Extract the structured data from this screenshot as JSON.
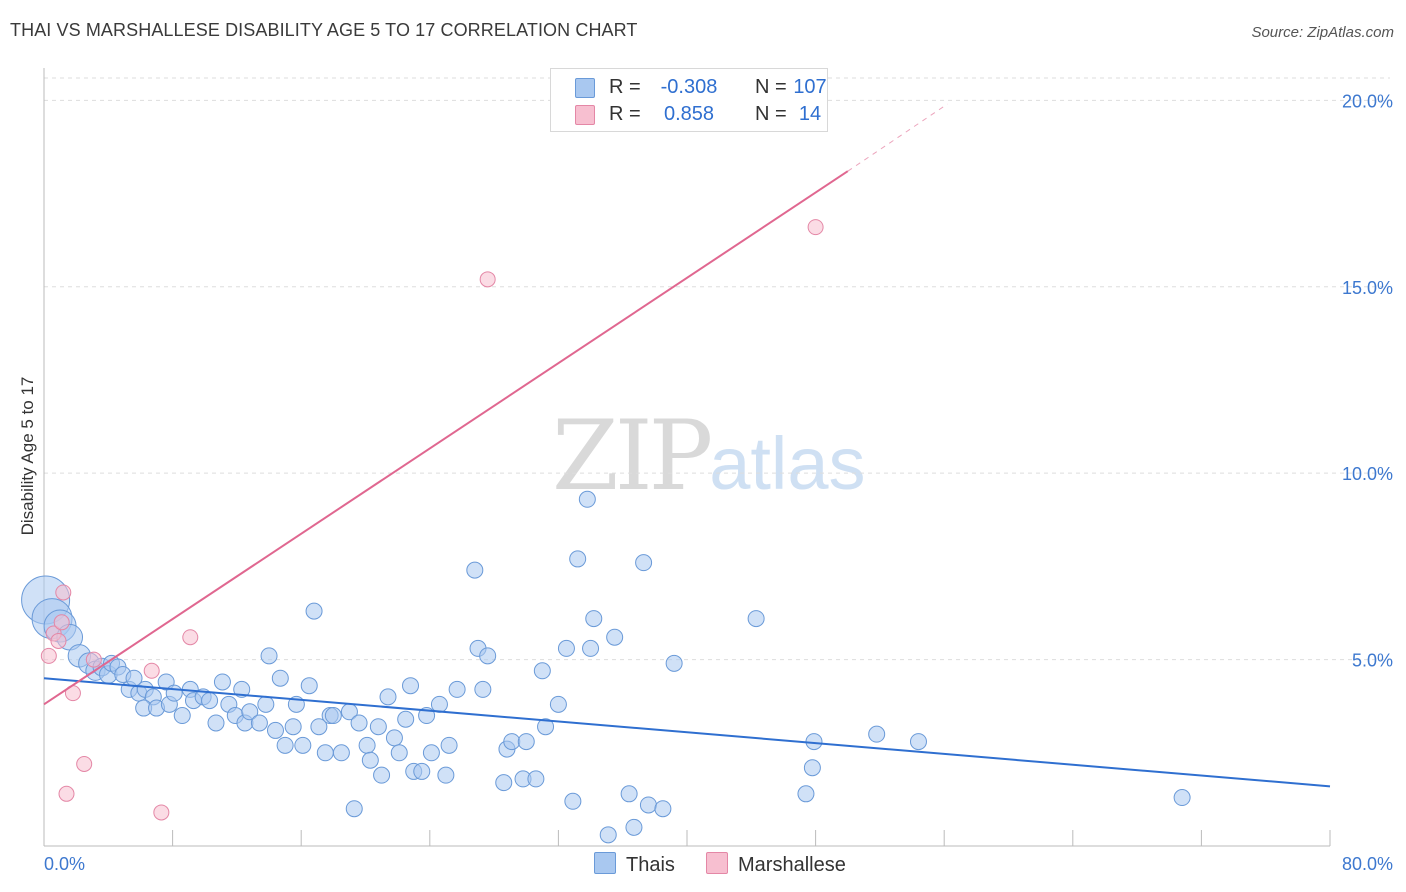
{
  "title": "THAI VS MARSHALLESE DISABILITY AGE 5 TO 17 CORRELATION CHART",
  "source": "Source: ZipAtlas.com",
  "watermark": {
    "zip": "ZIP",
    "atlas": "atlas"
  },
  "legend": {
    "rows": [
      {
        "r_label": "R =",
        "r_value": "-0.308",
        "n_label": "N =",
        "n_value": "107",
        "color": "#a9c8f0",
        "border": "#6a9ad8"
      },
      {
        "r_label": "R =",
        "r_value": "0.858",
        "n_label": "N =",
        "n_value": "14",
        "color": "#f7bfd0",
        "border": "#e487a6"
      }
    ]
  },
  "bottom_legend": [
    {
      "label": "Thais",
      "color": "#a9c8f0",
      "border": "#6a9ad8"
    },
    {
      "label": "Marshallese",
      "color": "#f7bfd0",
      "border": "#e487a6"
    }
  ],
  "chart_data": {
    "type": "scatter",
    "title": "THAI VS MARSHALLESE DISABILITY AGE 5 TO 17 CORRELATION CHART",
    "xlabel": "",
    "ylabel": "Disability Age 5 to 17",
    "xlim": [
      0,
      80
    ],
    "ylim": [
      0,
      20.6
    ],
    "x_tick_labels": [
      "0.0%",
      "80.0%"
    ],
    "y_ticks": [
      5,
      10,
      15,
      20
    ],
    "y_tick_labels": [
      "5.0%",
      "10.0%",
      "15.0%",
      "20.0%"
    ],
    "grid": "horizontal dashed",
    "legend_position": "top-center",
    "series": [
      {
        "name": "Thais",
        "color": "#6a9ad8",
        "fill": "#a9c8f0",
        "trend": {
          "x": [
            0,
            80
          ],
          "y": [
            4.5,
            1.6
          ],
          "color": "#2f6fd0"
        },
        "points": [
          {
            "x": 0.1,
            "y": 6.6,
            "s": 3
          },
          {
            "x": 0.5,
            "y": 6.1,
            "s": 2.5
          },
          {
            "x": 1.0,
            "y": 5.9,
            "s": 2
          },
          {
            "x": 1.6,
            "y": 5.6,
            "s": 1.6
          },
          {
            "x": 2.2,
            "y": 5.1,
            "s": 1.4
          },
          {
            "x": 2.8,
            "y": 4.9,
            "s": 1.3
          },
          {
            "x": 3.2,
            "y": 4.7,
            "s": 1.2
          },
          {
            "x": 3.6,
            "y": 4.8,
            "s": 1.1
          },
          {
            "x": 4.0,
            "y": 4.6,
            "s": 1.1
          },
          {
            "x": 4.2,
            "y": 4.9,
            "s": 1
          },
          {
            "x": 4.6,
            "y": 4.8,
            "s": 1
          },
          {
            "x": 4.9,
            "y": 4.6,
            "s": 1
          },
          {
            "x": 5.3,
            "y": 4.2,
            "s": 1
          },
          {
            "x": 5.6,
            "y": 4.5,
            "s": 1
          },
          {
            "x": 5.9,
            "y": 4.1,
            "s": 1
          },
          {
            "x": 6.3,
            "y": 4.2,
            "s": 1
          },
          {
            "x": 6.8,
            "y": 4.0,
            "s": 1
          },
          {
            "x": 6.2,
            "y": 3.7,
            "s": 1
          },
          {
            "x": 7.0,
            "y": 3.7,
            "s": 1
          },
          {
            "x": 7.6,
            "y": 4.4,
            "s": 1
          },
          {
            "x": 7.8,
            "y": 3.8,
            "s": 1
          },
          {
            "x": 8.1,
            "y": 4.1,
            "s": 1
          },
          {
            "x": 8.6,
            "y": 3.5,
            "s": 1
          },
          {
            "x": 9.1,
            "y": 4.2,
            "s": 1
          },
          {
            "x": 9.3,
            "y": 3.9,
            "s": 1
          },
          {
            "x": 9.9,
            "y": 4.0,
            "s": 1
          },
          {
            "x": 10.3,
            "y": 3.9,
            "s": 1
          },
          {
            "x": 10.7,
            "y": 3.3,
            "s": 1
          },
          {
            "x": 11.1,
            "y": 4.4,
            "s": 1
          },
          {
            "x": 11.5,
            "y": 3.8,
            "s": 1
          },
          {
            "x": 11.9,
            "y": 3.5,
            "s": 1
          },
          {
            "x": 12.3,
            "y": 4.2,
            "s": 1
          },
          {
            "x": 12.5,
            "y": 3.3,
            "s": 1
          },
          {
            "x": 12.8,
            "y": 3.6,
            "s": 1
          },
          {
            "x": 13.4,
            "y": 3.3,
            "s": 1
          },
          {
            "x": 13.8,
            "y": 3.8,
            "s": 1
          },
          {
            "x": 14.0,
            "y": 5.1,
            "s": 1
          },
          {
            "x": 14.4,
            "y": 3.1,
            "s": 1
          },
          {
            "x": 14.7,
            "y": 4.5,
            "s": 1
          },
          {
            "x": 15.0,
            "y": 2.7,
            "s": 1
          },
          {
            "x": 15.5,
            "y": 3.2,
            "s": 1
          },
          {
            "x": 15.7,
            "y": 3.8,
            "s": 1
          },
          {
            "x": 16.1,
            "y": 2.7,
            "s": 1
          },
          {
            "x": 16.5,
            "y": 4.3,
            "s": 1
          },
          {
            "x": 16.8,
            "y": 6.3,
            "s": 1
          },
          {
            "x": 17.1,
            "y": 3.2,
            "s": 1
          },
          {
            "x": 17.5,
            "y": 2.5,
            "s": 1
          },
          {
            "x": 17.8,
            "y": 3.5,
            "s": 1
          },
          {
            "x": 18.0,
            "y": 3.5,
            "s": 1
          },
          {
            "x": 18.5,
            "y": 2.5,
            "s": 1
          },
          {
            "x": 19.0,
            "y": 3.6,
            "s": 1
          },
          {
            "x": 19.3,
            "y": 1.0,
            "s": 1
          },
          {
            "x": 19.6,
            "y": 3.3,
            "s": 1
          },
          {
            "x": 20.1,
            "y": 2.7,
            "s": 1
          },
          {
            "x": 20.3,
            "y": 2.3,
            "s": 1
          },
          {
            "x": 20.8,
            "y": 3.2,
            "s": 1
          },
          {
            "x": 21.0,
            "y": 1.9,
            "s": 1
          },
          {
            "x": 21.4,
            "y": 4.0,
            "s": 1
          },
          {
            "x": 21.8,
            "y": 2.9,
            "s": 1
          },
          {
            "x": 22.1,
            "y": 2.5,
            "s": 1
          },
          {
            "x": 22.5,
            "y": 3.4,
            "s": 1
          },
          {
            "x": 22.8,
            "y": 4.3,
            "s": 1
          },
          {
            "x": 23.0,
            "y": 2.0,
            "s": 1
          },
          {
            "x": 23.5,
            "y": 2.0,
            "s": 1
          },
          {
            "x": 23.8,
            "y": 3.5,
            "s": 1
          },
          {
            "x": 24.1,
            "y": 2.5,
            "s": 1
          },
          {
            "x": 24.6,
            "y": 3.8,
            "s": 1
          },
          {
            "x": 25.0,
            "y": 1.9,
            "s": 1
          },
          {
            "x": 25.2,
            "y": 2.7,
            "s": 1
          },
          {
            "x": 25.7,
            "y": 4.2,
            "s": 1
          },
          {
            "x": 26.8,
            "y": 7.4,
            "s": 1
          },
          {
            "x": 27.0,
            "y": 5.3,
            "s": 1
          },
          {
            "x": 27.3,
            "y": 4.2,
            "s": 1
          },
          {
            "x": 27.6,
            "y": 5.1,
            "s": 1
          },
          {
            "x": 28.6,
            "y": 1.7,
            "s": 1
          },
          {
            "x": 28.8,
            "y": 2.6,
            "s": 1
          },
          {
            "x": 29.1,
            "y": 2.8,
            "s": 1
          },
          {
            "x": 29.8,
            "y": 1.8,
            "s": 1
          },
          {
            "x": 30.0,
            "y": 2.8,
            "s": 1
          },
          {
            "x": 30.6,
            "y": 1.8,
            "s": 1
          },
          {
            "x": 31.0,
            "y": 4.7,
            "s": 1
          },
          {
            "x": 31.2,
            "y": 3.2,
            "s": 1
          },
          {
            "x": 32.0,
            "y": 3.8,
            "s": 1
          },
          {
            "x": 32.5,
            "y": 5.3,
            "s": 1
          },
          {
            "x": 32.9,
            "y": 1.2,
            "s": 1
          },
          {
            "x": 33.2,
            "y": 7.7,
            "s": 1
          },
          {
            "x": 33.8,
            "y": 9.3,
            "s": 1
          },
          {
            "x": 34.0,
            "y": 5.3,
            "s": 1
          },
          {
            "x": 34.2,
            "y": 6.1,
            "s": 1
          },
          {
            "x": 35.1,
            "y": 0.3,
            "s": 1
          },
          {
            "x": 35.5,
            "y": 5.6,
            "s": 1
          },
          {
            "x": 36.4,
            "y": 1.4,
            "s": 1
          },
          {
            "x": 36.7,
            "y": 0.5,
            "s": 1
          },
          {
            "x": 37.3,
            "y": 7.6,
            "s": 1
          },
          {
            "x": 37.6,
            "y": 1.1,
            "s": 1
          },
          {
            "x": 38.5,
            "y": 1.0,
            "s": 1
          },
          {
            "x": 39.2,
            "y": 4.9,
            "s": 1
          },
          {
            "x": 44.3,
            "y": 6.1,
            "s": 1
          },
          {
            "x": 47.4,
            "y": 1.4,
            "s": 1
          },
          {
            "x": 47.8,
            "y": 2.1,
            "s": 1
          },
          {
            "x": 47.9,
            "y": 2.8,
            "s": 1
          },
          {
            "x": 51.8,
            "y": 3.0,
            "s": 1
          },
          {
            "x": 54.4,
            "y": 2.8,
            "s": 1
          },
          {
            "x": 70.8,
            "y": 1.3,
            "s": 1
          }
        ]
      },
      {
        "name": "Marshallese",
        "color": "#e487a6",
        "fill": "#f7bfd0",
        "trend": {
          "x": [
            0,
            50.0
          ],
          "y": [
            3.8,
            18.1
          ],
          "dashed_to": {
            "x": 56.2,
            "y": 19.9
          },
          "color": "#e06790"
        },
        "points": [
          {
            "x": 0.3,
            "y": 5.1,
            "s": 1
          },
          {
            "x": 0.6,
            "y": 5.7,
            "s": 1
          },
          {
            "x": 0.9,
            "y": 5.5,
            "s": 1
          },
          {
            "x": 1.1,
            "y": 6.0,
            "s": 1
          },
          {
            "x": 1.2,
            "y": 6.8,
            "s": 1
          },
          {
            "x": 1.4,
            "y": 1.4,
            "s": 1
          },
          {
            "x": 1.8,
            "y": 4.1,
            "s": 1
          },
          {
            "x": 2.5,
            "y": 2.2,
            "s": 1
          },
          {
            "x": 3.1,
            "y": 5.0,
            "s": 1
          },
          {
            "x": 6.7,
            "y": 4.7,
            "s": 1
          },
          {
            "x": 7.3,
            "y": 0.9,
            "s": 1
          },
          {
            "x": 9.1,
            "y": 5.6,
            "s": 1
          },
          {
            "x": 27.6,
            "y": 15.2,
            "s": 1
          },
          {
            "x": 48.0,
            "y": 16.6,
            "s": 1
          }
        ]
      }
    ]
  }
}
